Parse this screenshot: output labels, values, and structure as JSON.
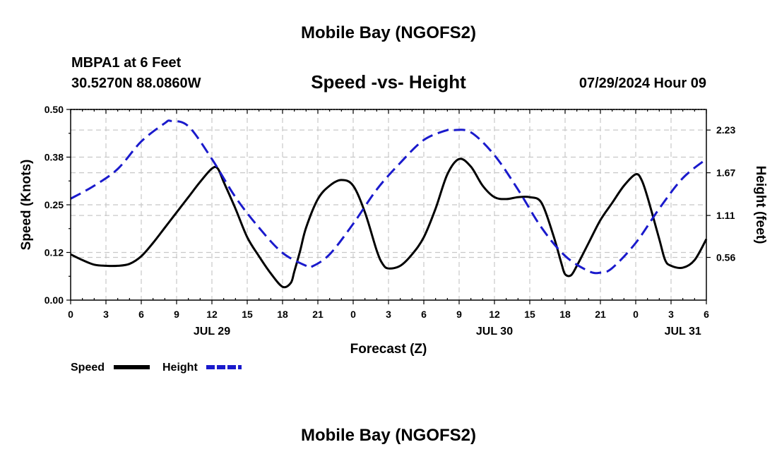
{
  "page_title": "Mobile Bay (NGOFS2)",
  "page_title_bottom": "Mobile Bay (NGOFS2)",
  "station": {
    "name_line": "MBPA1 at 6 Feet",
    "coords_line": "30.5270N  88.0860W"
  },
  "plot_title": "Speed -vs- Height",
  "run_time": "07/29/2024 Hour 09",
  "chart_data": {
    "type": "line",
    "title": "Speed -vs- Height",
    "xlabel": "Forecast (Z)",
    "ylabel_left": "Speed (Knots)",
    "ylabel_right": "Height (feet)",
    "x_range_hours": [
      0,
      54
    ],
    "x_ticks": [
      {
        "h": 0,
        "label": "0"
      },
      {
        "h": 3,
        "label": "3"
      },
      {
        "h": 6,
        "label": "6"
      },
      {
        "h": 9,
        "label": "9"
      },
      {
        "h": 12,
        "label": "12"
      },
      {
        "h": 15,
        "label": "15"
      },
      {
        "h": 18,
        "label": "18"
      },
      {
        "h": 21,
        "label": "21"
      },
      {
        "h": 24,
        "label": "0"
      },
      {
        "h": 27,
        "label": "3"
      },
      {
        "h": 30,
        "label": "6"
      },
      {
        "h": 33,
        "label": "9"
      },
      {
        "h": 36,
        "label": "12"
      },
      {
        "h": 39,
        "label": "15"
      },
      {
        "h": 42,
        "label": "18"
      },
      {
        "h": 45,
        "label": "21"
      },
      {
        "h": 48,
        "label": "0"
      },
      {
        "h": 51,
        "label": "3"
      },
      {
        "h": 54,
        "label": "6"
      }
    ],
    "date_labels": [
      {
        "h": 12,
        "label": "JUL 29"
      },
      {
        "h": 36,
        "label": "JUL 30"
      },
      {
        "h": 52,
        "label": "JUL 31"
      }
    ],
    "y_left_range": [
      0,
      0.5
    ],
    "y_left_ticks": [
      "0.00",
      "0.12",
      "0.25",
      "0.38",
      "0.50"
    ],
    "y_right_range": [
      0.0,
      2.5
    ],
    "y_right_ticks": [
      "0.56",
      "1.11",
      "1.67",
      "2.23"
    ],
    "grid": true,
    "legend": [
      {
        "name": "Speed",
        "color": "#000000",
        "style": "solid"
      },
      {
        "name": "Height",
        "color": "#1a1acc",
        "style": "dashed"
      }
    ],
    "series": [
      {
        "name": "Speed",
        "axis": "left",
        "color": "#000000",
        "x": [
          0,
          1,
          2,
          3,
          4,
          5,
          6,
          7,
          8,
          9,
          10,
          11,
          12,
          12.5,
          13,
          14,
          15,
          16,
          17,
          18,
          18.7,
          19,
          19.5,
          20,
          21,
          22,
          23,
          24,
          25,
          26,
          26.5,
          27,
          28,
          29,
          30,
          31,
          32,
          33,
          34,
          35,
          36,
          37,
          38,
          39,
          40,
          41,
          41.7,
          42,
          42.5,
          43,
          44,
          45,
          46,
          47,
          48,
          48.5,
          49,
          50,
          50.5,
          51,
          52,
          53,
          54
        ],
        "values": [
          0.12,
          0.105,
          0.093,
          0.09,
          0.09,
          0.095,
          0.115,
          0.15,
          0.19,
          0.23,
          0.27,
          0.31,
          0.345,
          0.345,
          0.31,
          0.24,
          0.165,
          0.115,
          0.07,
          0.035,
          0.045,
          0.075,
          0.13,
          0.19,
          0.265,
          0.3,
          0.315,
          0.3,
          0.23,
          0.13,
          0.095,
          0.083,
          0.09,
          0.12,
          0.165,
          0.24,
          0.33,
          0.37,
          0.35,
          0.3,
          0.27,
          0.265,
          0.27,
          0.27,
          0.255,
          0.17,
          0.095,
          0.068,
          0.065,
          0.09,
          0.15,
          0.21,
          0.255,
          0.3,
          0.33,
          0.315,
          0.27,
          0.16,
          0.105,
          0.09,
          0.085,
          0.105,
          0.16
        ]
      },
      {
        "name": "Height",
        "axis": "right",
        "color": "#1a1acc",
        "x": [
          0,
          2,
          4,
          6,
          8,
          8.5,
          10,
          12,
          14,
          16,
          18,
          20,
          20.5,
          22,
          24,
          26,
          28,
          30,
          32,
          32.5,
          34,
          36,
          38,
          40,
          42,
          44,
          45,
          46,
          48,
          50,
          52,
          54
        ],
        "values": [
          1.33,
          1.5,
          1.72,
          2.08,
          2.32,
          2.35,
          2.28,
          1.85,
          1.35,
          0.95,
          0.62,
          0.45,
          0.44,
          0.6,
          1.0,
          1.45,
          1.8,
          2.1,
          2.23,
          2.23,
          2.2,
          1.9,
          1.45,
          0.95,
          0.58,
          0.38,
          0.36,
          0.42,
          0.75,
          1.2,
          1.6,
          1.85
        ]
      }
    ]
  }
}
